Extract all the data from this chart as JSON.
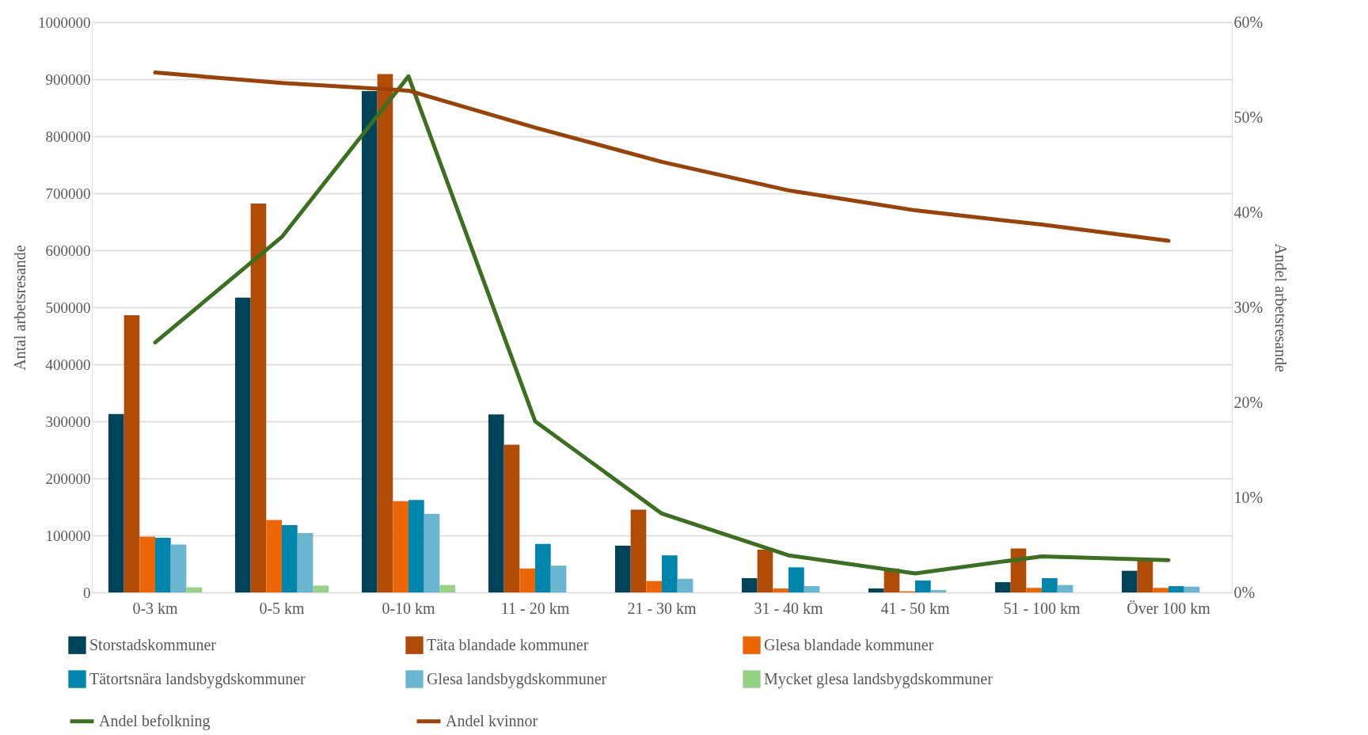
{
  "chart_data": {
    "type": "bar",
    "ylabel": "Antal arbetsresande",
    "y2label": "Andel arbetsresande",
    "categories": [
      "0-3 km",
      "0-5 km",
      "0-10 km",
      "11 - 20 km",
      "21 - 30 km",
      "31 - 40 km",
      "41 - 50 km",
      "51 - 100 km",
      "Över 100 km"
    ],
    "series": [
      {
        "name": "Storstadskommuner",
        "color": "#00445a",
        "values": [
          313000,
          517000,
          879000,
          312000,
          82000,
          25000,
          7000,
          18000,
          38000
        ]
      },
      {
        "name": "Täta blandade kommuner",
        "color": "#b04b08",
        "values": [
          486000,
          682000,
          909000,
          259000,
          145000,
          75000,
          42000,
          77000,
          58000
        ]
      },
      {
        "name": "Glesa blandade kommuner",
        "color": "#ec6608",
        "values": [
          98000,
          127000,
          160000,
          42000,
          20000,
          7000,
          2000,
          8000,
          8000
        ]
      },
      {
        "name": "Tätortsnära landsbygdskommuner",
        "color": "#0085ad",
        "values": [
          96000,
          118000,
          162000,
          85000,
          65000,
          44000,
          21000,
          25000,
          11000
        ]
      },
      {
        "name": "Glesa landsbygdskommuner",
        "color": "#6ab5cf",
        "values": [
          84000,
          104000,
          138000,
          47000,
          24000,
          11000,
          4000,
          13000,
          10000
        ]
      },
      {
        "name": "Mycket glesa landsbygdskommuner",
        "color": "#97d185",
        "values": [
          9000,
          12000,
          13000,
          0,
          0,
          0,
          0,
          0,
          0
        ]
      },
      {
        "name": "Andel befolkning",
        "color": "#3a7020",
        "type": "line",
        "axis": "y2",
        "values": [
          26.3,
          37.4,
          54.3,
          18.0,
          8.3,
          3.9,
          2.0,
          3.8,
          3.4
        ]
      },
      {
        "name": "Andel kvinnor",
        "color": "#9a4208",
        "type": "line",
        "axis": "y2",
        "values": [
          54.7,
          53.6,
          52.8,
          48.9,
          45.3,
          42.3,
          40.2,
          38.7,
          37.0
        ]
      }
    ],
    "ylim": [
      0,
      1000000
    ],
    "yticks": [
      0,
      100000,
      200000,
      300000,
      400000,
      500000,
      600000,
      700000,
      800000,
      900000,
      1000000
    ],
    "y2lim": [
      0,
      60
    ],
    "y2ticks": [
      {
        "value": 0,
        "label": "0%"
      },
      {
        "value": 10,
        "label": "10%"
      },
      {
        "value": 20,
        "label": "20%"
      },
      {
        "value": 30,
        "label": "30%"
      },
      {
        "value": 40,
        "label": "40%"
      },
      {
        "value": 50,
        "label": "50%"
      },
      {
        "value": 60,
        "label": "60%"
      }
    ],
    "grid": "y",
    "legend": "bottom",
    "marker": "none",
    "line_style": "solid"
  }
}
